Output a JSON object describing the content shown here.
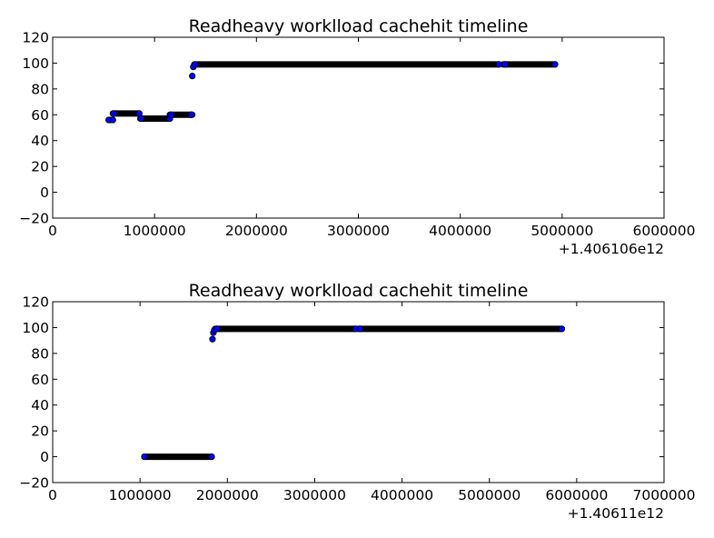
{
  "chart_data": [
    {
      "type": "scatter",
      "title": "Readheavy worklload cachehit timeline",
      "xlabel": "",
      "ylabel": "",
      "x_offset_label": "+1.406106e12",
      "xlim": [
        0,
        6000000
      ],
      "ylim": [
        -20,
        120
      ],
      "xticks": [
        "0",
        "1000000",
        "2000000",
        "3000000",
        "4000000",
        "5000000",
        "6000000"
      ],
      "yticks": [
        "−20",
        "0",
        "20",
        "40",
        "60",
        "80",
        "100",
        "120"
      ],
      "grid": false,
      "marker_color": "#0000ff",
      "segments": [
        {
          "x_start": 550000,
          "x_end": 590000,
          "y": 56
        },
        {
          "x_start": 590000,
          "x_end": 850000,
          "y": 61
        },
        {
          "x_start": 860000,
          "x_end": 1140000,
          "y": 57
        },
        {
          "x_start": 1150000,
          "x_end": 1370000,
          "y": 60
        },
        {
          "x_start": 1390000,
          "x_end": 4380000,
          "y": 99
        },
        {
          "x_start": 4420000,
          "x_end": 4930000,
          "y": 99
        }
      ],
      "points": [
        {
          "x": 550000,
          "y": 56
        },
        {
          "x": 590000,
          "y": 56
        },
        {
          "x": 600000,
          "y": 61
        },
        {
          "x": 850000,
          "y": 61
        },
        {
          "x": 870000,
          "y": 57
        },
        {
          "x": 1150000,
          "y": 57
        },
        {
          "x": 1160000,
          "y": 60
        },
        {
          "x": 1360000,
          "y": 60
        },
        {
          "x": 1370000,
          "y": 90
        },
        {
          "x": 1380000,
          "y": 97
        },
        {
          "x": 1400000,
          "y": 99
        },
        {
          "x": 4380000,
          "y": 99
        },
        {
          "x": 4440000,
          "y": 99
        },
        {
          "x": 4930000,
          "y": 99
        }
      ]
    },
    {
      "type": "scatter",
      "title": "Readheavy worklload cachehit timeline",
      "xlabel": "",
      "ylabel": "",
      "x_offset_label": "+1.40611e12",
      "xlim": [
        0,
        7000000
      ],
      "ylim": [
        -20,
        120
      ],
      "xticks": [
        "0",
        "1000000",
        "2000000",
        "3000000",
        "4000000",
        "5000000",
        "6000000",
        "7000000"
      ],
      "yticks": [
        "−20",
        "0",
        "20",
        "40",
        "60",
        "80",
        "100",
        "120"
      ],
      "grid": false,
      "marker_color": "#0000ff",
      "segments": [
        {
          "x_start": 1050000,
          "x_end": 1820000,
          "y": 0
        },
        {
          "x_start": 1860000,
          "x_end": 3470000,
          "y": 99
        },
        {
          "x_start": 3500000,
          "x_end": 5830000,
          "y": 99
        }
      ],
      "points": [
        {
          "x": 1050000,
          "y": 0
        },
        {
          "x": 1820000,
          "y": 0
        },
        {
          "x": 1830000,
          "y": 91
        },
        {
          "x": 1840000,
          "y": 96
        },
        {
          "x": 1850000,
          "y": 98
        },
        {
          "x": 1880000,
          "y": 99
        },
        {
          "x": 3470000,
          "y": 99
        },
        {
          "x": 3520000,
          "y": 99
        },
        {
          "x": 5830000,
          "y": 99
        }
      ]
    }
  ]
}
